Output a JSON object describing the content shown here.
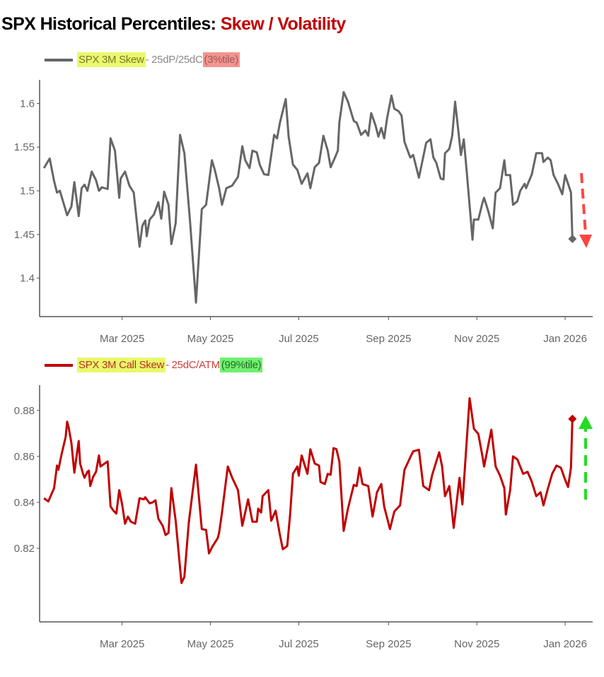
{
  "title": {
    "main": "SPX Historical Percentiles: ",
    "accent": "Skew / Volatility"
  },
  "colors": {
    "skew_line": "#666666",
    "call_line": "#c00000",
    "down_arrow": "#ff4444",
    "up_arrow": "#22dd22",
    "title_accent": "#c00000"
  },
  "chart_data": [
    {
      "type": "line",
      "legend": {
        "name": "SPX 3M Skew",
        "desc": " - 25dP/25dC ",
        "percentile": "(3%tile)"
      },
      "x_unit": "days since 2025-01-01",
      "x_ticks": [
        {
          "day": 59,
          "label": "Mar 2025"
        },
        {
          "day": 120,
          "label": "May 2025"
        },
        {
          "day": 181,
          "label": "Jul 2025"
        },
        {
          "day": 243,
          "label": "Sep 2025"
        },
        {
          "day": 304,
          "label": "Nov 2025"
        },
        {
          "day": 365,
          "label": "Jan 2026"
        }
      ],
      "y_ticks": [
        {
          "v": 1.6,
          "label": "1.6"
        },
        {
          "v": 1.55,
          "label": "1.55"
        },
        {
          "v": 1.5,
          "label": "1.5"
        },
        {
          "v": 1.45,
          "label": "1.45"
        },
        {
          "v": 1.4,
          "label": "1.4"
        }
      ],
      "xlim": [
        2,
        384
      ],
      "ylim": [
        1.356,
        1.627
      ],
      "annotation": "down-arrow",
      "series": [
        [
          5,
          1.526
        ],
        [
          9,
          1.537
        ],
        [
          12,
          1.511
        ],
        [
          14,
          1.498
        ],
        [
          16,
          1.5
        ],
        [
          21,
          1.472
        ],
        [
          24,
          1.482
        ],
        [
          26,
          1.51
        ],
        [
          29,
          1.471
        ],
        [
          31,
          1.503
        ],
        [
          33,
          1.507
        ],
        [
          35,
          1.5
        ],
        [
          38,
          1.522
        ],
        [
          41,
          1.512
        ],
        [
          43,
          1.5
        ],
        [
          45,
          1.504
        ],
        [
          49,
          1.502
        ],
        [
          51,
          1.56
        ],
        [
          54,
          1.546
        ],
        [
          57,
          1.492
        ],
        [
          58,
          1.514
        ],
        [
          61,
          1.522
        ],
        [
          64,
          1.506
        ],
        [
          67,
          1.498
        ],
        [
          71,
          1.436
        ],
        [
          73,
          1.46
        ],
        [
          75,
          1.466
        ],
        [
          76,
          1.448
        ],
        [
          78,
          1.467
        ],
        [
          81,
          1.473
        ],
        [
          84,
          1.487
        ],
        [
          86,
          1.468
        ],
        [
          88,
          1.499
        ],
        [
          91,
          1.484
        ],
        [
          93,
          1.439
        ],
        [
          96,
          1.463
        ],
        [
          99,
          1.564
        ],
        [
          102,
          1.543
        ],
        [
          106,
          1.463
        ],
        [
          110,
          1.372
        ],
        [
          114,
          1.479
        ],
        [
          117,
          1.484
        ],
        [
          121,
          1.535
        ],
        [
          123,
          1.524
        ],
        [
          126,
          1.503
        ],
        [
          128,
          1.484
        ],
        [
          131,
          1.503
        ],
        [
          135,
          1.506
        ],
        [
          139,
          1.516
        ],
        [
          142,
          1.551
        ],
        [
          144,
          1.535
        ],
        [
          147,
          1.526
        ],
        [
          149,
          1.546
        ],
        [
          152,
          1.544
        ],
        [
          154,
          1.53
        ],
        [
          157,
          1.519
        ],
        [
          160,
          1.518
        ],
        [
          164,
          1.564
        ],
        [
          166,
          1.56
        ],
        [
          168,
          1.578
        ],
        [
          172,
          1.605
        ],
        [
          174,
          1.562
        ],
        [
          177,
          1.53
        ],
        [
          180,
          1.524
        ],
        [
          183,
          1.508
        ],
        [
          187,
          1.52
        ],
        [
          189,
          1.503
        ],
        [
          192,
          1.527
        ],
        [
          195,
          1.532
        ],
        [
          198,
          1.563
        ],
        [
          201,
          1.546
        ],
        [
          203,
          1.527
        ],
        [
          206,
          1.538
        ],
        [
          208,
          1.546
        ],
        [
          209,
          1.578
        ],
        [
          212,
          1.613
        ],
        [
          215,
          1.602
        ],
        [
          219,
          1.58
        ],
        [
          221,
          1.578
        ],
        [
          224,
          1.564
        ],
        [
          227,
          1.569
        ],
        [
          229,
          1.563
        ],
        [
          231,
          1.589
        ],
        [
          234,
          1.575
        ],
        [
          236,
          1.562
        ],
        [
          238,
          1.572
        ],
        [
          240,
          1.56
        ],
        [
          242,
          1.583
        ],
        [
          245,
          1.609
        ],
        [
          247,
          1.594
        ],
        [
          250,
          1.591
        ],
        [
          252,
          1.586
        ],
        [
          254,
          1.556
        ],
        [
          258,
          1.538
        ],
        [
          260,
          1.541
        ],
        [
          264,
          1.515
        ],
        [
          269,
          1.555
        ],
        [
          272,
          1.559
        ],
        [
          274,
          1.538
        ],
        [
          276,
          1.532
        ],
        [
          279,
          1.514
        ],
        [
          281,
          1.513
        ],
        [
          282,
          1.543
        ],
        [
          285,
          1.548
        ],
        [
          287,
          1.563
        ],
        [
          289,
          1.602
        ],
        [
          291,
          1.572
        ],
        [
          293,
          1.541
        ],
        [
          295,
          1.559
        ],
        [
          297,
          1.522
        ],
        [
          301,
          1.444
        ],
        [
          302,
          1.467
        ],
        [
          305,
          1.467
        ],
        [
          308,
          1.487
        ],
        [
          309,
          1.492
        ],
        [
          312,
          1.476
        ],
        [
          315,
          1.457
        ],
        [
          317,
          1.498
        ],
        [
          320,
          1.503
        ],
        [
          323,
          1.535
        ],
        [
          324,
          1.518
        ],
        [
          327,
          1.518
        ],
        [
          329,
          1.484
        ],
        [
          332,
          1.488
        ],
        [
          334,
          1.5
        ],
        [
          337,
          1.508
        ],
        [
          338,
          1.503
        ],
        [
          342,
          1.519
        ],
        [
          345,
          1.543
        ],
        [
          349,
          1.543
        ],
        [
          350,
          1.533
        ],
        [
          353,
          1.538
        ],
        [
          355,
          1.535
        ],
        [
          357,
          1.518
        ],
        [
          360,
          1.508
        ],
        [
          363,
          1.496
        ],
        [
          365,
          1.518
        ],
        [
          369,
          1.498
        ],
        [
          370,
          1.445
        ]
      ]
    },
    {
      "type": "line",
      "legend": {
        "name": "SPX 3M Call Skew",
        "desc": " - 25dC/ATM ",
        "percentile": "(99%tile)"
      },
      "x_unit": "days since 2025-01-01",
      "x_ticks": [
        {
          "day": 59,
          "label": "Mar 2025"
        },
        {
          "day": 120,
          "label": "May 2025"
        },
        {
          "day": 181,
          "label": "Jul 2025"
        },
        {
          "day": 243,
          "label": "Sep 2025"
        },
        {
          "day": 304,
          "label": "Nov 2025"
        },
        {
          "day": 365,
          "label": "Jan 2026"
        }
      ],
      "y_ticks": [
        {
          "v": 0.88,
          "label": "0.88"
        },
        {
          "v": 0.86,
          "label": "0.86"
        },
        {
          "v": 0.84,
          "label": "0.84"
        },
        {
          "v": 0.82,
          "label": "0.82"
        }
      ],
      "xlim": [
        2,
        384
      ],
      "ylim": [
        0.788,
        0.891
      ],
      "annotation": "up-arrow",
      "series": [
        [
          5,
          0.8418
        ],
        [
          8,
          0.8404
        ],
        [
          12,
          0.8462
        ],
        [
          14,
          0.856
        ],
        [
          15,
          0.8542
        ],
        [
          17,
          0.8604
        ],
        [
          20,
          0.8684
        ],
        [
          21,
          0.8751
        ],
        [
          22,
          0.8729
        ],
        [
          24,
          0.8658
        ],
        [
          26,
          0.8529
        ],
        [
          28,
          0.8622
        ],
        [
          29,
          0.8667
        ],
        [
          30,
          0.8569
        ],
        [
          32,
          0.8524
        ],
        [
          33,
          0.8507
        ],
        [
          35,
          0.8533
        ],
        [
          36,
          0.8538
        ],
        [
          37,
          0.8471
        ],
        [
          39,
          0.8511
        ],
        [
          41,
          0.8533
        ],
        [
          43,
          0.8604
        ],
        [
          44,
          0.8556
        ],
        [
          47,
          0.8569
        ],
        [
          49,
          0.8578
        ],
        [
          51,
          0.8382
        ],
        [
          53,
          0.8364
        ],
        [
          55,
          0.8351
        ],
        [
          57,
          0.8453
        ],
        [
          59,
          0.8391
        ],
        [
          61,
          0.8307
        ],
        [
          63,
          0.8338
        ],
        [
          65,
          0.8316
        ],
        [
          68,
          0.8307
        ],
        [
          71,
          0.8418
        ],
        [
          74,
          0.8413
        ],
        [
          75,
          0.8422
        ],
        [
          78,
          0.8396
        ],
        [
          80,
          0.84
        ],
        [
          82,
          0.8409
        ],
        [
          84,
          0.8329
        ],
        [
          87,
          0.8298
        ],
        [
          89,
          0.8258
        ],
        [
          91,
          0.8267
        ],
        [
          93,
          0.8462
        ],
        [
          96,
          0.832
        ],
        [
          100,
          0.8049
        ],
        [
          102,
          0.8076
        ],
        [
          105,
          0.8311
        ],
        [
          110,
          0.8564
        ],
        [
          114,
          0.8284
        ],
        [
          117,
          0.828
        ],
        [
          119,
          0.8178
        ],
        [
          121,
          0.8204
        ],
        [
          125,
          0.8244
        ],
        [
          126,
          0.8267
        ],
        [
          128,
          0.8356
        ],
        [
          132,
          0.8556
        ],
        [
          135,
          0.8507
        ],
        [
          139,
          0.8453
        ],
        [
          142,
          0.8298
        ],
        [
          146,
          0.8413
        ],
        [
          149,
          0.8316
        ],
        [
          152,
          0.8316
        ],
        [
          153,
          0.8373
        ],
        [
          155,
          0.8356
        ],
        [
          156,
          0.8427
        ],
        [
          160,
          0.8453
        ],
        [
          162,
          0.832
        ],
        [
          165,
          0.8364
        ],
        [
          168,
          0.8258
        ],
        [
          170,
          0.8196
        ],
        [
          173,
          0.821
        ],
        [
          175,
          0.8347
        ],
        [
          177,
          0.8524
        ],
        [
          180,
          0.8556
        ],
        [
          181,
          0.8516
        ],
        [
          183,
          0.8604
        ],
        [
          187,
          0.8524
        ],
        [
          189,
          0.8631
        ],
        [
          192,
          0.8569
        ],
        [
          195,
          0.856
        ],
        [
          196,
          0.8489
        ],
        [
          199,
          0.848
        ],
        [
          201,
          0.8524
        ],
        [
          203,
          0.852
        ],
        [
          205,
          0.8636
        ],
        [
          207,
          0.8631
        ],
        [
          209,
          0.8578
        ],
        [
          212,
          0.8276
        ],
        [
          215,
          0.8373
        ],
        [
          219,
          0.8476
        ],
        [
          221,
          0.8471
        ],
        [
          223,
          0.8551
        ],
        [
          225,
          0.848
        ],
        [
          229,
          0.8471
        ],
        [
          232,
          0.8338
        ],
        [
          235,
          0.8444
        ],
        [
          238,
          0.848
        ],
        [
          240,
          0.8382
        ],
        [
          244,
          0.8284
        ],
        [
          247,
          0.836
        ],
        [
          251,
          0.8387
        ],
        [
          254,
          0.8542
        ],
        [
          258,
          0.8596
        ],
        [
          260,
          0.8622
        ],
        [
          264,
          0.8629
        ],
        [
          267,
          0.8471
        ],
        [
          271,
          0.8453
        ],
        [
          273,
          0.8516
        ],
        [
          276,
          0.8578
        ],
        [
          278,
          0.8618
        ],
        [
          280,
          0.8556
        ],
        [
          282,
          0.8427
        ],
        [
          285,
          0.8471
        ],
        [
          288,
          0.8289
        ],
        [
          292,
          0.8507
        ],
        [
          294,
          0.8391
        ],
        [
          299,
          0.8853
        ],
        [
          302,
          0.872
        ],
        [
          305,
          0.8698
        ],
        [
          308,
          0.8596
        ],
        [
          309,
          0.8556
        ],
        [
          314,
          0.8716
        ],
        [
          317,
          0.8556
        ],
        [
          320,
          0.8516
        ],
        [
          323,
          0.8462
        ],
        [
          324,
          0.8347
        ],
        [
          327,
          0.8453
        ],
        [
          329,
          0.86
        ],
        [
          332,
          0.8587
        ],
        [
          336,
          0.8524
        ],
        [
          339,
          0.8533
        ],
        [
          342,
          0.8489
        ],
        [
          345,
          0.8427
        ],
        [
          348,
          0.8444
        ],
        [
          350,
          0.8387
        ],
        [
          353,
          0.8458
        ],
        [
          356,
          0.8524
        ],
        [
          359,
          0.856
        ],
        [
          362,
          0.8551
        ],
        [
          365,
          0.8498
        ],
        [
          367,
          0.8467
        ],
        [
          369,
          0.8551
        ],
        [
          370,
          0.8763
        ]
      ]
    }
  ]
}
